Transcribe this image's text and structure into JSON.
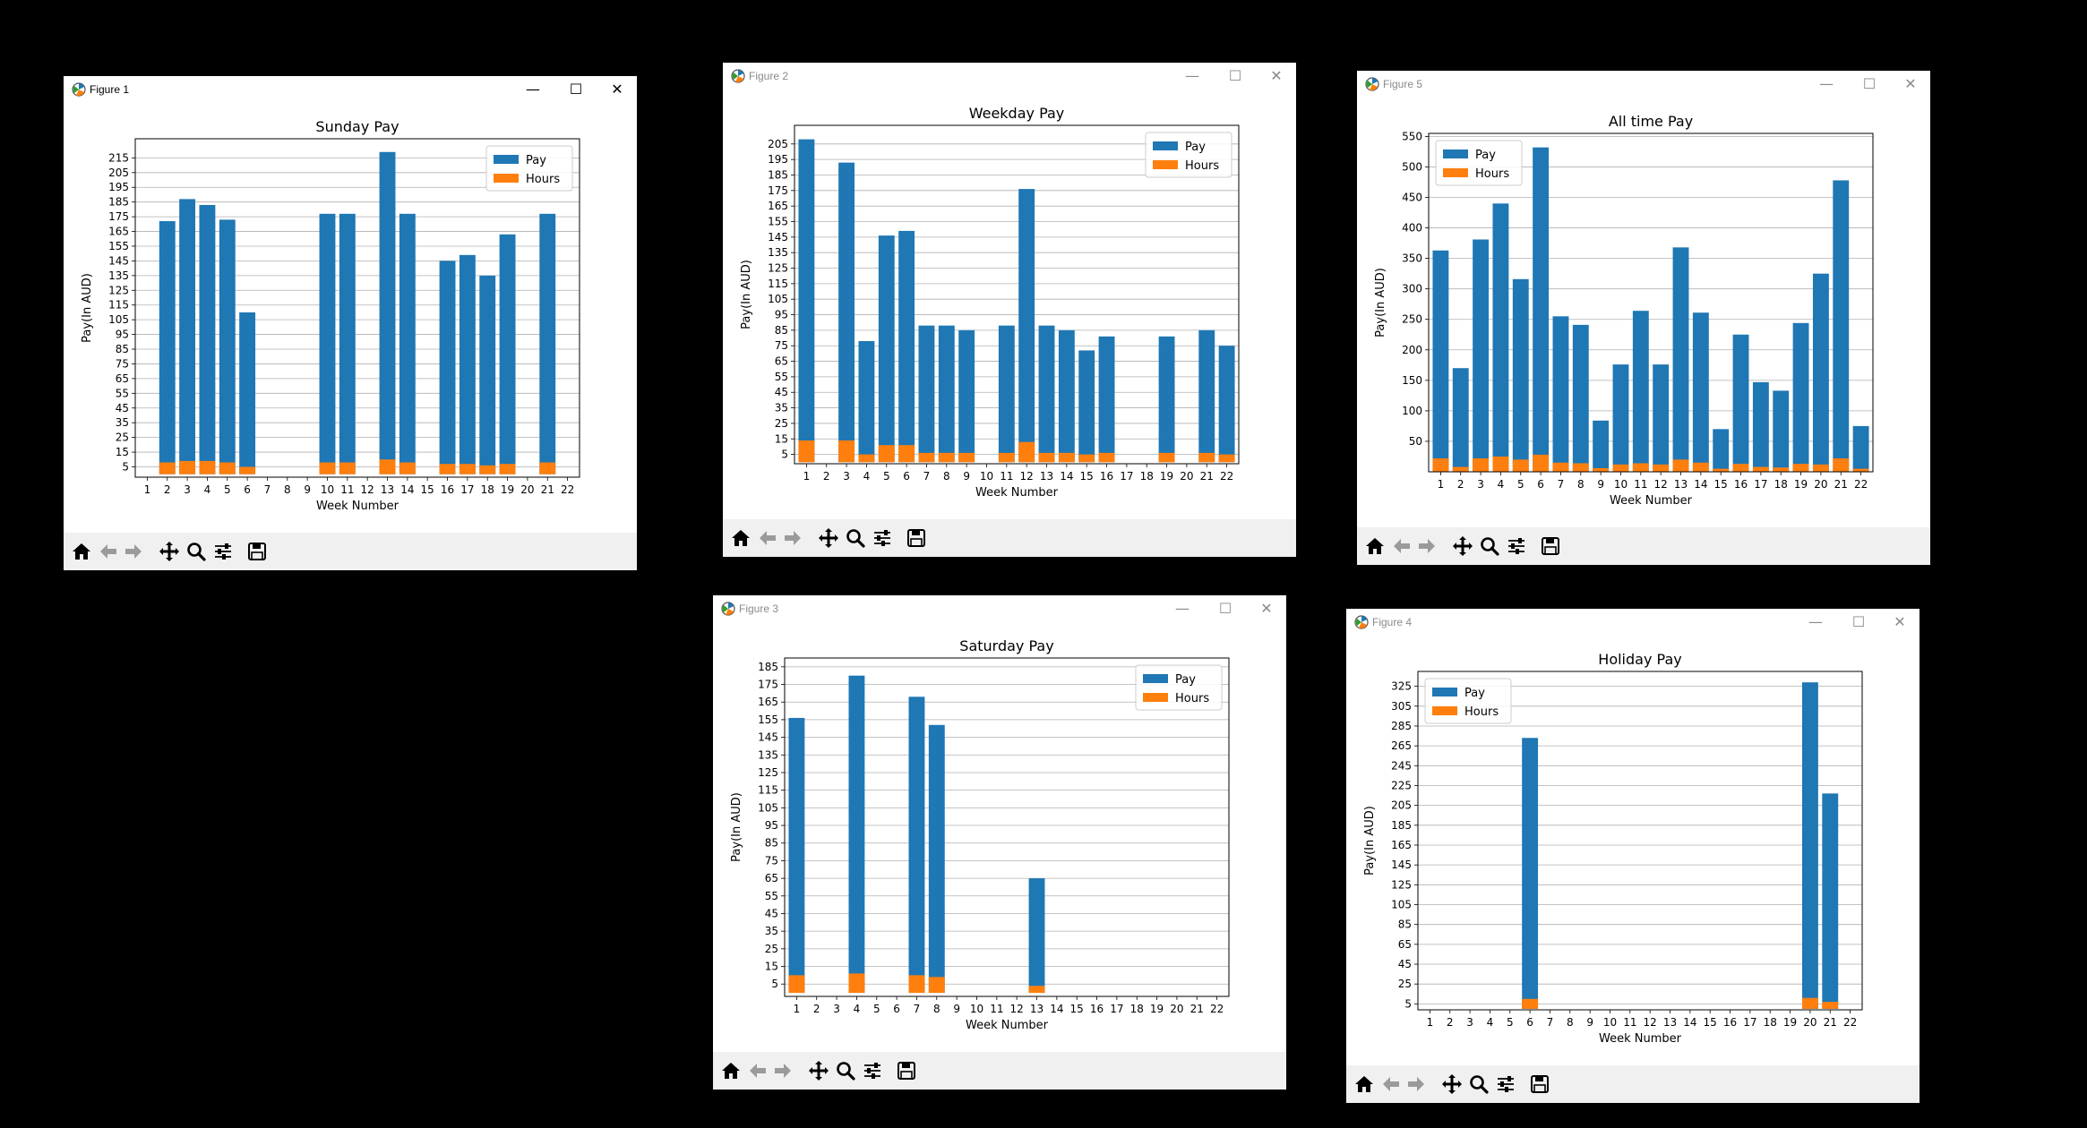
{
  "colors": {
    "pay": "#1f77b4",
    "hours": "#ff7f0e",
    "background": "#000000",
    "toolbar": "#f0f0f0"
  },
  "toolbar_icons": [
    "home-icon",
    "back-arrow-icon",
    "forward-arrow-icon",
    "pan-icon",
    "zoom-icon",
    "configure-subplots-icon",
    "save-icon"
  ],
  "windows": [
    {
      "id": "w1",
      "title": "Figure 1",
      "close": "✕",
      "maximize": "☐",
      "minimize": "—",
      "active": true
    },
    {
      "id": "w2",
      "title": "Figure 2",
      "close": "✕",
      "maximize": "☐",
      "minimize": "—",
      "active": false
    },
    {
      "id": "w5",
      "title": "Figure 5",
      "close": "✕",
      "maximize": "☐",
      "minimize": "—",
      "active": false
    },
    {
      "id": "w3",
      "title": "Figure 3",
      "close": "✕",
      "maximize": "☐",
      "minimize": "—",
      "active": false
    },
    {
      "id": "w4",
      "title": "Figure 4",
      "close": "✕",
      "maximize": "☐",
      "minimize": "—",
      "active": false
    }
  ],
  "chart_data": [
    {
      "type": "bar",
      "stacked": true,
      "title": "Sunday Pay",
      "xlabel": "Week Number",
      "ylabel": "Pay(In AUD)",
      "categories": [
        "1",
        "2",
        "3",
        "4",
        "5",
        "6",
        "7",
        "8",
        "9",
        "10",
        "11",
        "12",
        "13",
        "14",
        "15",
        "16",
        "17",
        "18",
        "19",
        "20",
        "21",
        "22"
      ],
      "yticks": [
        5,
        15,
        25,
        35,
        45,
        55,
        65,
        75,
        85,
        95,
        105,
        115,
        125,
        135,
        145,
        155,
        165,
        175,
        185,
        195,
        205,
        215
      ],
      "ylim": [
        -2,
        228
      ],
      "legend": "top-right",
      "grid": "y",
      "series": [
        {
          "name": "Pay",
          "values": [
            0,
            172,
            187,
            183,
            173,
            110,
            0,
            0,
            0,
            177,
            177,
            0,
            219,
            177,
            0,
            145,
            149,
            135,
            163,
            0,
            177,
            0
          ]
        },
        {
          "name": "Hours",
          "values": [
            0,
            8,
            9,
            9,
            8,
            5,
            0,
            0,
            0,
            8,
            8,
            0,
            10,
            8,
            0,
            7,
            7,
            6,
            7,
            0,
            8,
            0
          ]
        }
      ],
      "legend_entries": [
        "Pay",
        "Hours"
      ]
    },
    {
      "type": "bar",
      "stacked": true,
      "title": "Weekday Pay",
      "xlabel": "Week Number",
      "ylabel": "Pay(In AUD)",
      "categories": [
        "1",
        "2",
        "3",
        "4",
        "5",
        "6",
        "7",
        "8",
        "9",
        "10",
        "11",
        "12",
        "13",
        "14",
        "15",
        "16",
        "17",
        "18",
        "19",
        "20",
        "21",
        "22"
      ],
      "yticks": [
        5,
        15,
        25,
        35,
        45,
        55,
        65,
        75,
        85,
        95,
        105,
        115,
        125,
        135,
        145,
        155,
        165,
        175,
        185,
        195,
        205
      ],
      "ylim": [
        -1,
        217
      ],
      "legend": "top-right",
      "grid": "y",
      "series": [
        {
          "name": "Pay",
          "values": [
            208,
            0,
            193,
            78,
            146,
            149,
            88,
            88,
            85,
            0,
            88,
            176,
            88,
            85,
            72,
            81,
            0,
            0,
            81,
            0,
            85,
            75
          ]
        },
        {
          "name": "Hours",
          "values": [
            14,
            0,
            14,
            5,
            11,
            11,
            6,
            6,
            6,
            0,
            6,
            13,
            6,
            6,
            5,
            6,
            0,
            0,
            6,
            0,
            6,
            5
          ]
        }
      ],
      "legend_entries": [
        "Pay",
        "Hours"
      ]
    },
    {
      "type": "bar",
      "stacked": true,
      "title": "All time Pay",
      "xlabel": "Week Number",
      "ylabel": "Pay(In AUD)",
      "categories": [
        "1",
        "2",
        "3",
        "4",
        "5",
        "6",
        "7",
        "8",
        "9",
        "10",
        "11",
        "12",
        "13",
        "14",
        "15",
        "16",
        "17",
        "18",
        "19",
        "20",
        "21",
        "22"
      ],
      "yticks": [
        50,
        100,
        150,
        200,
        250,
        300,
        350,
        400,
        450,
        500,
        550
      ],
      "ylim": [
        0,
        555
      ],
      "legend": "top-left",
      "grid": "y",
      "series": [
        {
          "name": "Pay",
          "values": [
            363,
            170,
            381,
            440,
            316,
            532,
            255,
            241,
            84,
            176,
            264,
            176,
            368,
            261,
            70,
            225,
            147,
            133,
            244,
            325,
            478,
            75
          ]
        },
        {
          "name": "Hours",
          "values": [
            22,
            8,
            22,
            25,
            20,
            28,
            15,
            14,
            6,
            12,
            14,
            12,
            20,
            15,
            5,
            13,
            8,
            7,
            13,
            12,
            22,
            5
          ]
        }
      ],
      "legend_entries": [
        "Pay",
        "Hours"
      ]
    },
    {
      "type": "bar",
      "stacked": true,
      "title": "Saturday Pay",
      "xlabel": "Week Number",
      "ylabel": "Pay(In AUD)",
      "categories": [
        "1",
        "2",
        "3",
        "4",
        "5",
        "6",
        "7",
        "8",
        "9",
        "10",
        "11",
        "12",
        "13",
        "14",
        "15",
        "16",
        "17",
        "18",
        "19",
        "20",
        "21",
        "22"
      ],
      "yticks": [
        5,
        15,
        25,
        35,
        45,
        55,
        65,
        75,
        85,
        95,
        105,
        115,
        125,
        135,
        145,
        155,
        165,
        175,
        185
      ],
      "ylim": [
        -2,
        190
      ],
      "legend": "top-right",
      "grid": "y",
      "series": [
        {
          "name": "Pay",
          "values": [
            156,
            0,
            0,
            180,
            0,
            0,
            168,
            152,
            0,
            0,
            0,
            0,
            65,
            0,
            0,
            0,
            0,
            0,
            0,
            0,
            0,
            0
          ]
        },
        {
          "name": "Hours",
          "values": [
            10,
            0,
            0,
            11,
            0,
            0,
            10,
            9,
            0,
            0,
            0,
            0,
            4,
            0,
            0,
            0,
            0,
            0,
            0,
            0,
            0,
            0
          ]
        }
      ],
      "legend_entries": [
        "Pay",
        "Hours"
      ]
    },
    {
      "type": "bar",
      "stacked": true,
      "title": "Holiday Pay",
      "xlabel": "Week Number",
      "ylabel": "Pay(In AUD)",
      "categories": [
        "1",
        "2",
        "3",
        "4",
        "5",
        "6",
        "7",
        "8",
        "9",
        "10",
        "11",
        "12",
        "13",
        "14",
        "15",
        "16",
        "17",
        "18",
        "19",
        "20",
        "21",
        "22"
      ],
      "yticks": [
        5,
        25,
        45,
        65,
        85,
        105,
        125,
        145,
        165,
        185,
        205,
        225,
        245,
        265,
        285,
        305,
        325
      ],
      "ylim": [
        -1,
        340
      ],
      "legend": "top-left",
      "grid": "y",
      "series": [
        {
          "name": "Pay",
          "values": [
            0,
            0,
            0,
            0,
            0,
            273,
            0,
            0,
            0,
            0,
            0,
            0,
            0,
            0,
            0,
            0,
            0,
            0,
            0,
            329,
            217,
            0
          ]
        },
        {
          "name": "Hours",
          "values": [
            0,
            0,
            0,
            0,
            0,
            10,
            0,
            0,
            0,
            0,
            0,
            0,
            0,
            0,
            0,
            0,
            0,
            0,
            0,
            11,
            7,
            0
          ]
        }
      ],
      "legend_entries": [
        "Pay",
        "Hours"
      ]
    }
  ]
}
